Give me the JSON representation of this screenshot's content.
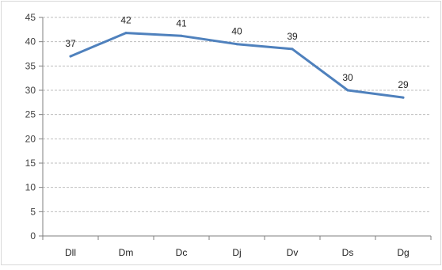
{
  "chart_data": {
    "type": "line",
    "title": "",
    "xlabel": "",
    "ylabel": "",
    "categories": [
      "Dll",
      "Dm",
      "Dc",
      "Dj",
      "Dv",
      "Ds",
      "Dg"
    ],
    "series": [
      {
        "values": [
          37,
          41.8,
          41.2,
          39.5,
          38.5,
          30,
          28.5
        ],
        "labels": [
          "37",
          "42",
          "41",
          "40",
          "39",
          "30",
          "29"
        ]
      }
    ],
    "ylim": [
      0,
      45
    ],
    "yticks": [
      "0",
      "5",
      "10",
      "15",
      "20",
      "25",
      "30",
      "35",
      "40",
      "45"
    ],
    "grid": true,
    "legend": "none",
    "colors": {
      "line": "#4f81bd",
      "grid": "#bfbfbf",
      "axis": "#7f7f7f",
      "border": "#d9d9d9"
    }
  }
}
